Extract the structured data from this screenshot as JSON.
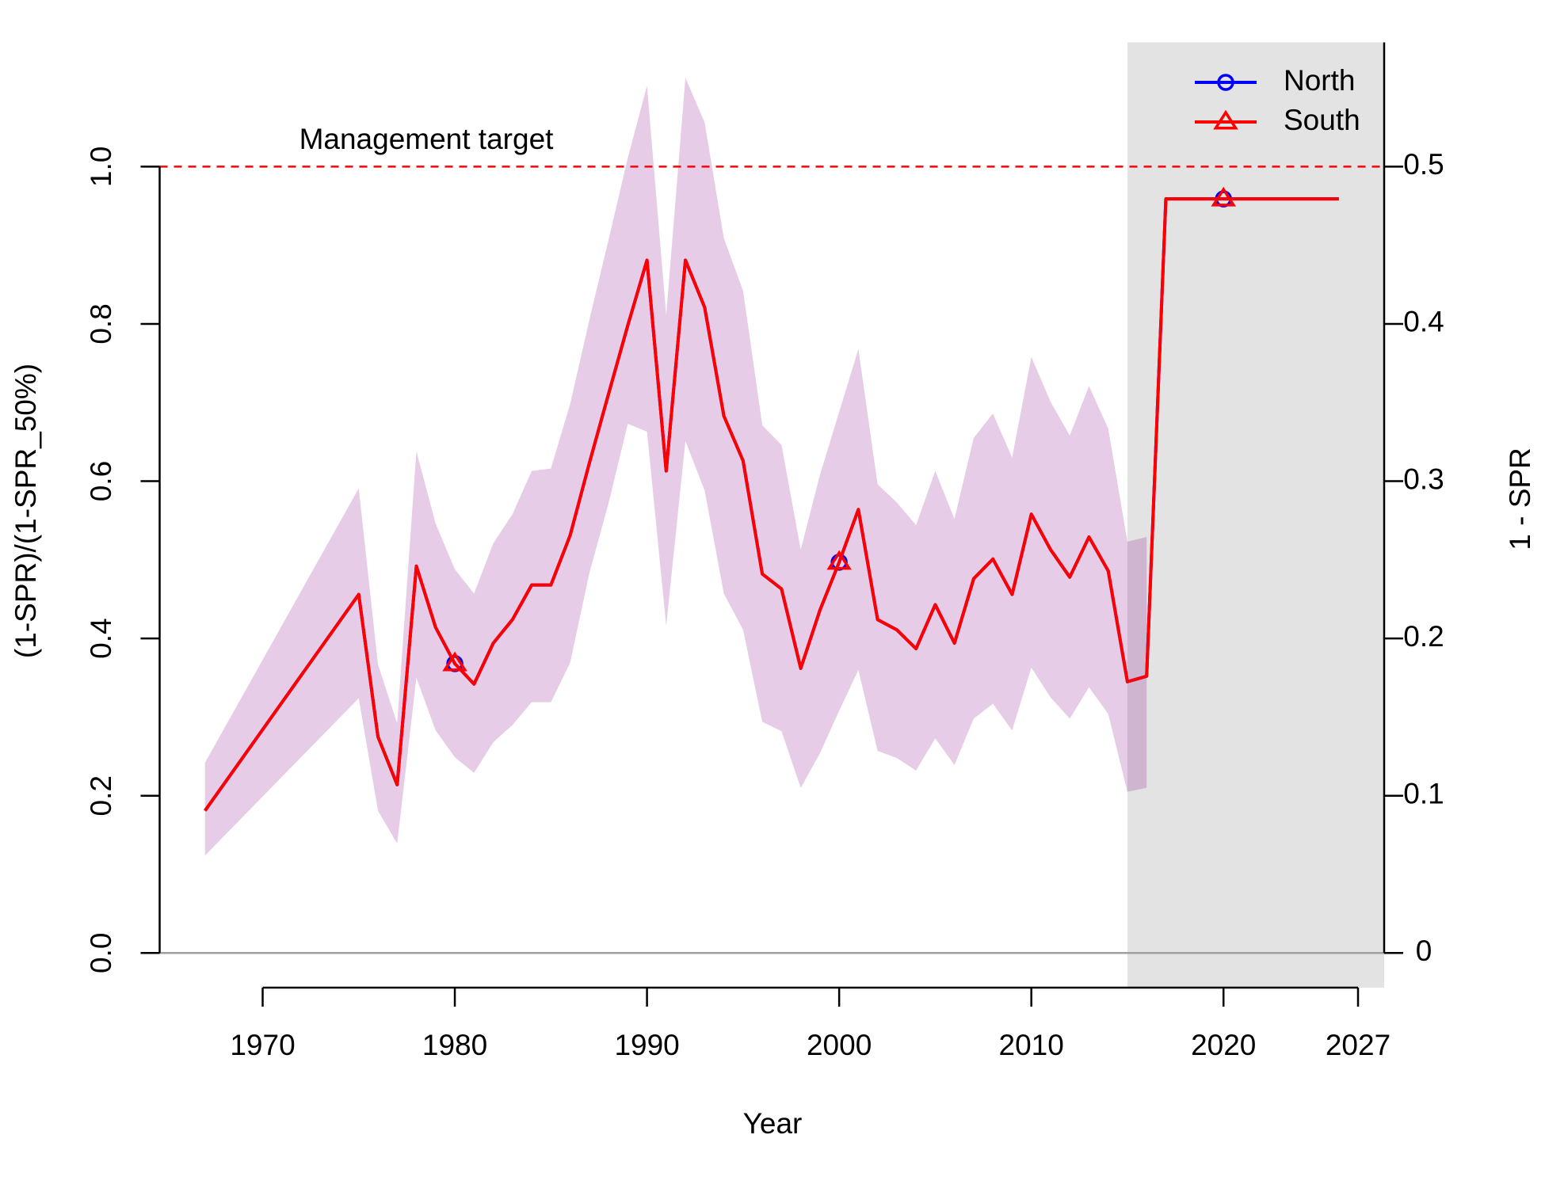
{
  "chart_data": {
    "type": "line",
    "x_label": "Year",
    "y_label": "(1-SPR)/(1-SPR_50%)",
    "y2_label": "1 - SPR",
    "x": [
      1967,
      1975,
      1976,
      1977,
      1978,
      1979,
      1980,
      1981,
      1982,
      1983,
      1984,
      1985,
      1986,
      1987,
      1988,
      1989,
      1990,
      1991,
      1992,
      1993,
      1994,
      1995,
      1996,
      1997,
      1998,
      1999,
      2000,
      2001,
      2002,
      2003,
      2004,
      2005,
      2006,
      2007,
      2008,
      2009,
      2010,
      2011,
      2012,
      2013,
      2014,
      2015,
      2016,
      2017,
      2018,
      2019,
      2020,
      2021,
      2022,
      2023,
      2024,
      2025,
      2026
    ],
    "series": [
      {
        "name": "North",
        "color": "#0000ff",
        "marker": "circle",
        "values": [
          0.181,
          0.456,
          0.275,
          0.214,
          0.492,
          0.414,
          0.368,
          0.342,
          0.394,
          0.424,
          0.468,
          0.468,
          0.531,
          0.623,
          0.711,
          0.798,
          0.881,
          0.613,
          0.881,
          0.821,
          0.683,
          0.626,
          0.482,
          0.463,
          0.362,
          0.436,
          0.497,
          0.564,
          0.424,
          0.411,
          0.387,
          0.443,
          0.394,
          0.476,
          0.501,
          0.456,
          0.558,
          0.513,
          0.478,
          0.529,
          0.486,
          0.345,
          0.352,
          0.959,
          0.959,
          0.959,
          0.959,
          0.959,
          0.959,
          0.959,
          0.959,
          0.959,
          0.959
        ]
      },
      {
        "name": "South",
        "color": "#ff0000",
        "marker": "triangle",
        "values": [
          0.181,
          0.456,
          0.275,
          0.214,
          0.492,
          0.414,
          0.368,
          0.342,
          0.394,
          0.424,
          0.468,
          0.468,
          0.531,
          0.623,
          0.711,
          0.798,
          0.881,
          0.613,
          0.881,
          0.821,
          0.683,
          0.626,
          0.482,
          0.463,
          0.362,
          0.436,
          0.497,
          0.564,
          0.424,
          0.411,
          0.387,
          0.443,
          0.394,
          0.476,
          0.501,
          0.456,
          0.558,
          0.513,
          0.478,
          0.529,
          0.486,
          0.345,
          0.352,
          0.959,
          0.959,
          0.959,
          0.959,
          0.959,
          0.959,
          0.959,
          0.959,
          0.959,
          0.959
        ]
      }
    ],
    "band": {
      "color": "#800080",
      "upper": [
        0.242,
        0.591,
        0.367,
        0.292,
        0.638,
        0.546,
        0.488,
        0.457,
        0.521,
        0.558,
        0.613,
        0.616,
        0.698,
        0.805,
        0.907,
        1.011,
        1.103,
        0.811,
        1.113,
        1.056,
        0.909,
        0.842,
        0.671,
        0.646,
        0.513,
        0.608,
        0.688,
        0.768,
        0.596,
        0.573,
        0.544,
        0.613,
        0.552,
        0.655,
        0.686,
        0.63,
        0.758,
        0.701,
        0.658,
        0.721,
        0.667,
        0.523,
        0.529,
        null,
        null,
        null,
        null,
        null,
        null,
        null,
        null,
        null,
        null
      ],
      "lower": [
        0.124,
        0.324,
        0.181,
        0.139,
        0.35,
        0.283,
        0.249,
        0.229,
        0.268,
        0.29,
        0.319,
        0.319,
        0.369,
        0.483,
        0.572,
        0.673,
        0.663,
        0.416,
        0.651,
        0.588,
        0.457,
        0.411,
        0.294,
        0.282,
        0.21,
        0.254,
        0.308,
        0.36,
        0.257,
        0.248,
        0.232,
        0.273,
        0.239,
        0.298,
        0.317,
        0.283,
        0.363,
        0.325,
        0.298,
        0.338,
        0.304,
        0.205,
        0.21,
        null,
        null,
        null,
        null,
        null,
        null,
        null,
        null,
        null,
        null
      ]
    },
    "reference_line": {
      "value": 1.0,
      "label": "Management target",
      "color": "#ff0000"
    },
    "forecast_start": 2015,
    "forecast_color": "#e3e3e3",
    "xlim": [
      1964.64,
      2028.36
    ],
    "xticks": [
      1970,
      1980,
      1990,
      2000,
      2010,
      2020,
      2027
    ],
    "ylim": [
      -0.044,
      1.158
    ],
    "yticks": [
      {
        "value": 0,
        "label": "0.0"
      },
      0.2,
      0.4,
      0.6,
      0.8,
      {
        "value": 1,
        "label": "1.0"
      }
    ],
    "y2lim": [
      -0.022,
      0.579
    ],
    "y2ticks": [
      0,
      0.1,
      0.2,
      0.3,
      0.4,
      0.5
    ],
    "legend": "topright",
    "grid": false
  }
}
